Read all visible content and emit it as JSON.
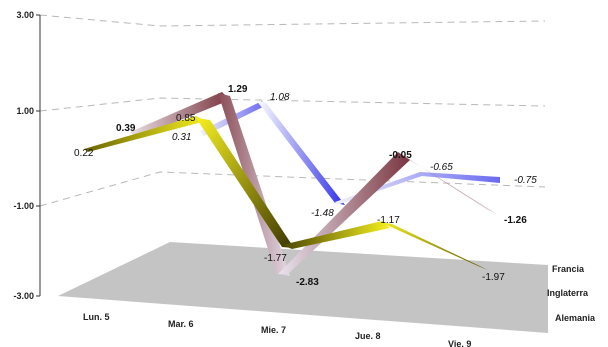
{
  "chart_data": {
    "type": "line",
    "style": "3d-ribbon",
    "categories": [
      "Lun. 5",
      "Mar. 6",
      "Mie. 7",
      "Jue. 8",
      "Vie. 9"
    ],
    "yticks": [
      "3.00",
      "1.00",
      "-1.00",
      "-3.00"
    ],
    "ylim": [
      -3,
      3
    ],
    "grid": true,
    "series": [
      {
        "name": "Francia",
        "values": [
          null,
          0.85,
          1.08,
          -1.48,
          -0.75
        ],
        "labels": [
          "",
          "",
          "1.08",
          "-1.48",
          "-0.75"
        ],
        "color": "#4040e0"
      },
      {
        "name": "Inglaterra",
        "values": [
          0.39,
          1.29,
          -2.83,
          -0.05,
          -1.26
        ],
        "labels": [
          "0.39",
          "1.29",
          "-2.83",
          "-0.05",
          "-1.26"
        ],
        "color": "#8a4a52"
      },
      {
        "name": "Alemania",
        "values": [
          0.22,
          0.31,
          -1.77,
          -1.17,
          -1.97
        ],
        "labels": [
          "0.22",
          "0.31",
          "-1.77",
          "-1.17",
          "-1.97"
        ],
        "color": "#e8e020"
      }
    ],
    "extra_labels": [
      {
        "series": "Inglaterra",
        "text": "0.85"
      },
      {
        "series": "Francia",
        "text": "-0.65"
      }
    ]
  }
}
